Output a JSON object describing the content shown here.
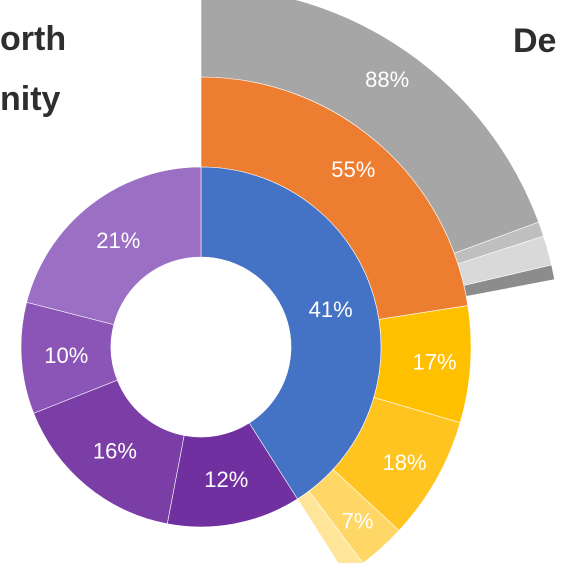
{
  "headings": {
    "left_line1": "orth",
    "left_line2": "nity",
    "right": "De"
  },
  "chart_data": {
    "type": "sunburst",
    "title": "",
    "rings": [
      {
        "ring": "inner",
        "segments": [
          {
            "label": "41%",
            "value": 41,
            "color": "#4472c4"
          },
          {
            "label": "12%",
            "value": 12,
            "color": "#7030a0"
          },
          {
            "label": "16%",
            "value": 16,
            "color": "#7a3ea6"
          },
          {
            "label": "10%",
            "value": 10,
            "color": "#8a55b6"
          },
          {
            "label": "21%",
            "value": 21,
            "color": "#9b6fc4"
          }
        ]
      },
      {
        "ring": "middle",
        "segments": [
          {
            "label": "55%",
            "value": 55,
            "color": "#ed7d31"
          },
          {
            "label": "17%",
            "value": 17,
            "color": "#ffc000"
          },
          {
            "label": "18%",
            "value": 18,
            "color": "#ffc41f"
          },
          {
            "label": "7%",
            "value": 7,
            "color": "#ffd766"
          },
          {
            "label": "",
            "value": 3,
            "color": "#ffe59a"
          }
        ]
      },
      {
        "ring": "outer",
        "segments": [
          {
            "label": "88%",
            "value": 88,
            "color": "#a6a6a6"
          },
          {
            "label": "",
            "value": 3,
            "color": "#bfbfbf"
          },
          {
            "label": "",
            "value": 6,
            "color": "#d9d9d9"
          },
          {
            "label": "",
            "value": 3,
            "color": "#8c8c8c"
          }
        ]
      }
    ]
  }
}
